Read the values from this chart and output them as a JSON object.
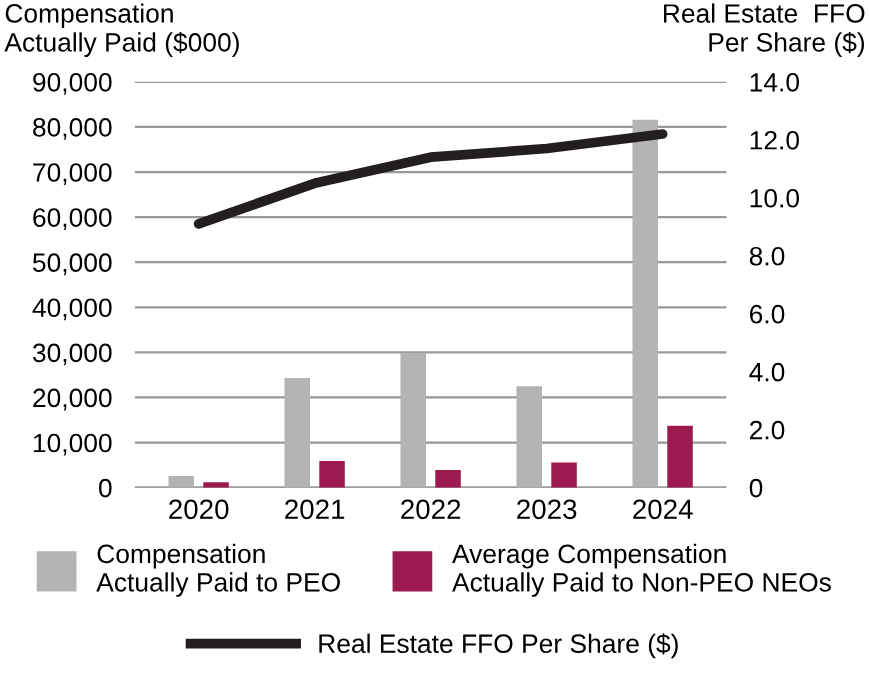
{
  "chart_data": {
    "type": "bar",
    "ylabel": "Compensation\nActually Paid ($000)",
    "y2label": "Real Estate  FFO\nPer Share ($)",
    "categories": [
      "2020",
      "2021",
      "2022",
      "2023",
      "2024"
    ],
    "series": [
      {
        "name": "Compensation\nActually Paid to PEO",
        "color": "#b3b3b3",
        "values": [
          2600,
          24300,
          29900,
          22500,
          81600
        ]
      },
      {
        "name": "Average Compensation\nActually Paid to Non-PEO NEOs",
        "color": "#9b1b4f",
        "values": [
          1200,
          5900,
          3900,
          5600,
          13700
        ]
      },
      {
        "name": "Real Estate FFO Per Share ($)",
        "type": "line",
        "axis": "y2",
        "color": "#231f20",
        "values": [
          9.1,
          10.5,
          11.4,
          11.7,
          12.2
        ]
      }
    ],
    "ylim": [
      0,
      90000
    ],
    "yticks": [
      0,
      {
        "value": 10000,
        "label": "10,000"
      },
      {
        "value": 20000,
        "label": "20,000"
      },
      {
        "value": 30000,
        "label": "30,000"
      },
      {
        "value": 40000,
        "label": "40,000"
      },
      {
        "value": 50000,
        "label": "50,000"
      },
      {
        "value": 60000,
        "label": "60,000"
      },
      {
        "value": 70000,
        "label": "70,000"
      },
      {
        "value": 80000,
        "label": "80,000"
      },
      {
        "value": 90000,
        "label": "90,000"
      }
    ],
    "y2lim": [
      0,
      14
    ],
    "y2ticks": [
      0,
      {
        "value": 2,
        "label": "2.0"
      },
      {
        "value": 4,
        "label": "4.0"
      },
      {
        "value": 6,
        "label": "6.0"
      },
      {
        "value": 8,
        "label": "8.0"
      },
      {
        "value": 10,
        "label": "10.0"
      },
      {
        "value": 12,
        "label": "12.0"
      },
      {
        "value": 14,
        "label": "14.0"
      }
    ],
    "grid": "y",
    "legend": "bottom"
  }
}
